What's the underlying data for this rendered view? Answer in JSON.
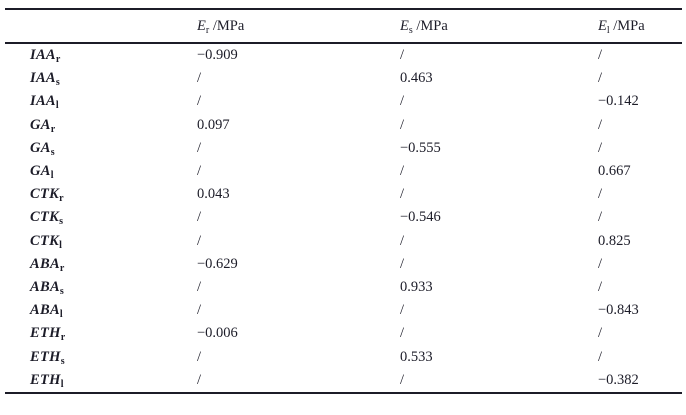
{
  "page": {
    "background_color": "#ffffff",
    "text_color": "#1c1c28",
    "rule_color": "#1c1c28"
  },
  "table": {
    "columns": [
      {
        "symbol": "E",
        "sub": "r",
        "unit": " /MPa"
      },
      {
        "symbol": "E",
        "sub": "s",
        "unit": " /MPa"
      },
      {
        "symbol": "E",
        "sub": "l",
        "unit": " /MPa"
      }
    ],
    "rows": [
      {
        "name": "IAA",
        "sub": "r",
        "values": [
          "−0.909",
          "/",
          "/"
        ]
      },
      {
        "name": "IAA",
        "sub": "s",
        "values": [
          "/",
          "0.463",
          "/"
        ]
      },
      {
        "name": "IAA",
        "sub": "l",
        "values": [
          "/",
          "/",
          "−0.142"
        ]
      },
      {
        "name": "GA",
        "sub": "r",
        "values": [
          "0.097",
          "/",
          "/"
        ]
      },
      {
        "name": "GA",
        "sub": "s",
        "values": [
          "/",
          "−0.555",
          "/"
        ]
      },
      {
        "name": "GA",
        "sub": "l",
        "values": [
          "/",
          "/",
          "0.667"
        ]
      },
      {
        "name": "CTK",
        "sub": "r",
        "values": [
          "0.043",
          "/",
          "/"
        ]
      },
      {
        "name": "CTK",
        "sub": "s",
        "values": [
          "/",
          "−0.546",
          "/"
        ]
      },
      {
        "name": "CTK",
        "sub": "l",
        "values": [
          "/",
          "/",
          "0.825"
        ]
      },
      {
        "name": "ABA",
        "sub": "r",
        "values": [
          "−0.629",
          "/",
          "/"
        ]
      },
      {
        "name": "ABA",
        "sub": "s",
        "values": [
          "/",
          "0.933",
          "/"
        ]
      },
      {
        "name": "ABA",
        "sub": "l",
        "values": [
          "/",
          "/",
          "−0.843"
        ]
      },
      {
        "name": "ETH",
        "sub": "r",
        "values": [
          "−0.006",
          "/",
          "/"
        ]
      },
      {
        "name": "ETH",
        "sub": "s",
        "values": [
          "/",
          "0.533",
          "/"
        ]
      },
      {
        "name": "ETH",
        "sub": "l",
        "values": [
          "/",
          "/",
          "−0.382"
        ]
      }
    ]
  }
}
